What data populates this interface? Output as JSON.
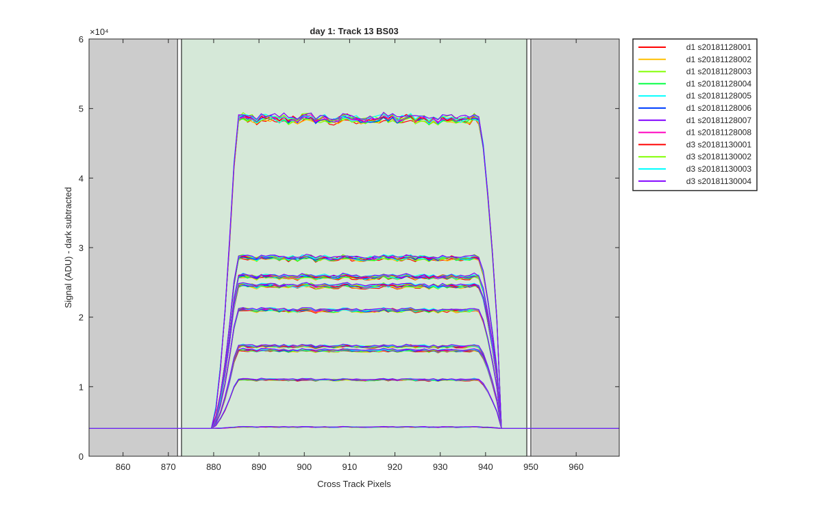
{
  "chart_data": {
    "type": "line",
    "title": "day 1: Track 13  BS03",
    "xlabel": "Cross Track Pixels",
    "ylabel": "Signal (ADU) - dark subtracted",
    "y_exponent_label": "×10⁴",
    "xlim": [
      852.5,
      969.5
    ],
    "ylim": [
      0,
      6
    ],
    "y_scale_factor": 10000,
    "x_ticks": [
      860,
      870,
      880,
      890,
      900,
      910,
      920,
      930,
      940,
      950,
      960
    ],
    "y_ticks": [
      0,
      1,
      2,
      3,
      4,
      5,
      6
    ],
    "grid": false,
    "legend_position": "outside-top-right",
    "shaded_regions": [
      {
        "from": 852.5,
        "to": 871.8,
        "color": "#cccccc"
      },
      {
        "from": 872.2,
        "to": 872.9,
        "color": "#ffffff"
      },
      {
        "from": 872.9,
        "to": 949.1,
        "color": "#d5e8d8"
      },
      {
        "from": 949.1,
        "to": 949.8,
        "color": "#ffffff"
      },
      {
        "from": 950.2,
        "to": 969.5,
        "color": "#cccccc"
      }
    ],
    "region_boundaries": [
      872.0,
      872.9,
      949.1,
      950.0
    ],
    "baseline": 0.4,
    "profile_start_x": 879.5,
    "profile_end_x": 944.5,
    "plateau_levels": [
      0.42,
      1.1,
      1.52,
      1.58,
      2.1,
      2.45,
      2.58,
      2.85,
      4.85
    ],
    "series": [
      {
        "name": "d1 s20181128001",
        "color": "#ff0000"
      },
      {
        "name": "d1 s20181128002",
        "color": "#ffbf00"
      },
      {
        "name": "d1 s20181128003",
        "color": "#80ff00"
      },
      {
        "name": "d1 s20181128004",
        "color": "#00ff40"
      },
      {
        "name": "d1 s20181128005",
        "color": "#00ffff"
      },
      {
        "name": "d1 s20181128006",
        "color": "#0040ff"
      },
      {
        "name": "d1 s20181128007",
        "color": "#8000ff"
      },
      {
        "name": "d1 s20181128008",
        "color": "#ff00bf"
      },
      {
        "name": "d3 s20181130001",
        "color": "#ff0000"
      },
      {
        "name": "d3 s20181130002",
        "color": "#80ff00"
      },
      {
        "name": "d3 s20181130003",
        "color": "#00ffff"
      },
      {
        "name": "d3 s20181130004",
        "color": "#8000ff"
      }
    ]
  }
}
